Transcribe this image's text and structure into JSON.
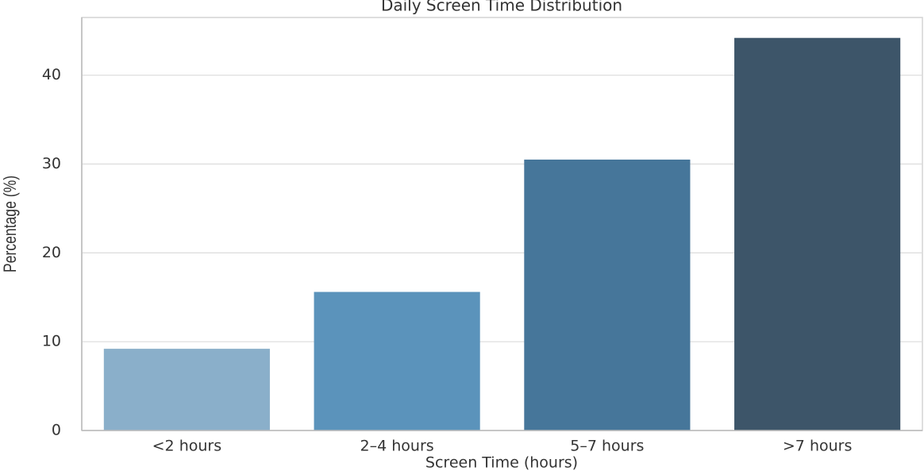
{
  "chart_data": {
    "type": "bar",
    "title": "Daily Screen Time Distribution",
    "x_label": "Screen Time (hours)",
    "y_label": "Percentage (%)",
    "categories": [
      "<2 hours",
      "2–4 hours",
      "5–7 hours",
      ">7 hours"
    ],
    "values": [
      9.2,
      15.6,
      30.5,
      44.2
    ],
    "colors": [
      "#8aafca",
      "#5b93bb",
      "#46769a",
      "#3d5569"
    ],
    "ylim": [
      0,
      46.5
    ],
    "yticks": [
      0,
      10,
      20,
      30,
      40
    ],
    "grid": true
  }
}
